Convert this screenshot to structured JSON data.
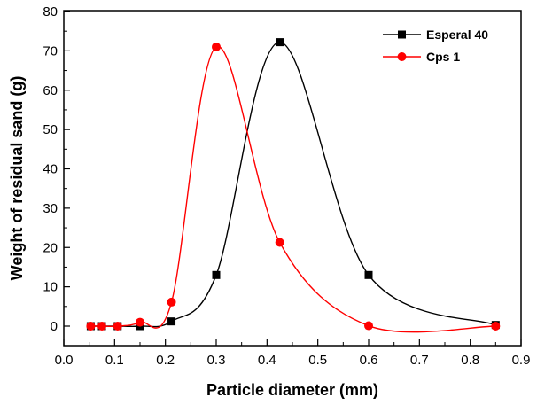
{
  "chart_data": {
    "type": "line",
    "title": "",
    "xlabel": "Particle diameter (mm)",
    "ylabel": "Weight of residual sand (g)",
    "xlim": [
      0.0,
      0.9
    ],
    "ylim": [
      -5,
      80
    ],
    "xticks": [
      "0.0",
      "0.1",
      "0.2",
      "0.3",
      "0.4",
      "0.5",
      "0.6",
      "0.7",
      "0.8",
      "0.9"
    ],
    "yticks": [
      "0",
      "10",
      "20",
      "30",
      "40",
      "50",
      "60",
      "70",
      "80"
    ],
    "grid": false,
    "legend_position": "top-right",
    "smoothed": true,
    "series": [
      {
        "name": "Esperal 40",
        "color": "#000000",
        "marker": "square",
        "x": [
          0.053,
          0.075,
          0.106,
          0.15,
          0.212,
          0.3,
          0.425,
          0.6,
          0.85
        ],
        "y": [
          0,
          0,
          0,
          0,
          1.2,
          13,
          72.2,
          13,
          0.3
        ]
      },
      {
        "name": "Cps 1",
        "color": "#ff0000",
        "marker": "circle",
        "x": [
          0.053,
          0.075,
          0.106,
          0.15,
          0.212,
          0.3,
          0.425,
          0.6,
          0.85
        ],
        "y": [
          0,
          0,
          0,
          1.0,
          6.1,
          71,
          21.3,
          0.1,
          0
        ]
      }
    ]
  }
}
